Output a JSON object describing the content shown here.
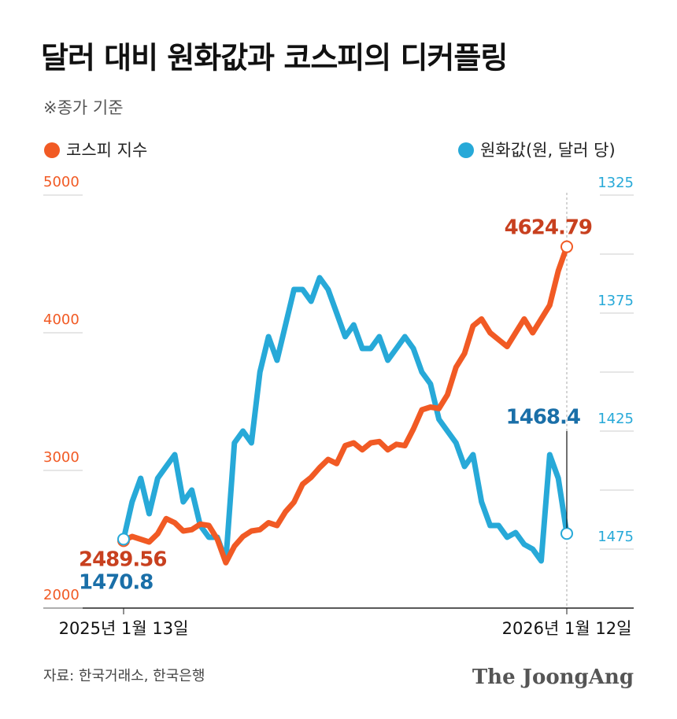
{
  "chart_data": {
    "type": "line",
    "title": "달러 대비 원화값과 코스피의 디커플링",
    "subtitle": "※종가 기준",
    "source": "자료: 한국거래소, 한국은행",
    "brand": "The JoongAng",
    "categories": [
      "2025년 1월 13일",
      null,
      null,
      null,
      null,
      null,
      null,
      null,
      null,
      null,
      null,
      null,
      null,
      null,
      null,
      null,
      null,
      null,
      null,
      null,
      null,
      null,
      null,
      null,
      null,
      null,
      null,
      null,
      null,
      null,
      null,
      null,
      null,
      null,
      null,
      null,
      null,
      null,
      null,
      null,
      null,
      null,
      null,
      null,
      null,
      null,
      null,
      null,
      null,
      null,
      null,
      null,
      "2026년 1월 12일"
    ],
    "ylim": [
      2000,
      5000
    ],
    "yticks": [
      2000,
      3000,
      4000,
      5000
    ],
    "y2lim": [
      1500,
      1325
    ],
    "y2ticks": [
      1325,
      1375,
      1425,
      1475
    ],
    "y2_minor_ticks": [
      1350,
      1400,
      1450
    ],
    "series": [
      {
        "name": "코스피 지수",
        "color": "#f15a24",
        "values": [
          2489.56,
          2520,
          2500,
          2480,
          2540,
          2650,
          2620,
          2560,
          2570,
          2610,
          2600,
          2500,
          2330,
          2450,
          2520,
          2560,
          2570,
          2620,
          2600,
          2700,
          2770,
          2900,
          2950,
          3020,
          3080,
          3050,
          3180,
          3200,
          3150,
          3200,
          3210,
          3150,
          3190,
          3180,
          3300,
          3440,
          3460,
          3450,
          3550,
          3750,
          3850,
          4050,
          4100,
          4000,
          3950,
          3900,
          4000,
          4100,
          4000,
          4100,
          4200,
          4450,
          4624.79
        ]
      },
      {
        "name": "원화값(원, 달러 당)",
        "color": "#27a9d8",
        "axis": "y2",
        "values": [
          1470.8,
          1455,
          1445,
          1460,
          1445,
          1440,
          1435,
          1455,
          1450,
          1465,
          1470,
          1470,
          1480,
          1430,
          1425,
          1430,
          1400,
          1385,
          1395,
          1380,
          1365,
          1365,
          1370,
          1360,
          1365,
          1375,
          1385,
          1380,
          1390,
          1390,
          1385,
          1395,
          1390,
          1385,
          1390,
          1400,
          1405,
          1420,
          1425,
          1430,
          1440,
          1435,
          1455,
          1465,
          1465,
          1470,
          1468,
          1473,
          1475,
          1480,
          1435,
          1445,
          1468.4
        ]
      }
    ]
  }
}
